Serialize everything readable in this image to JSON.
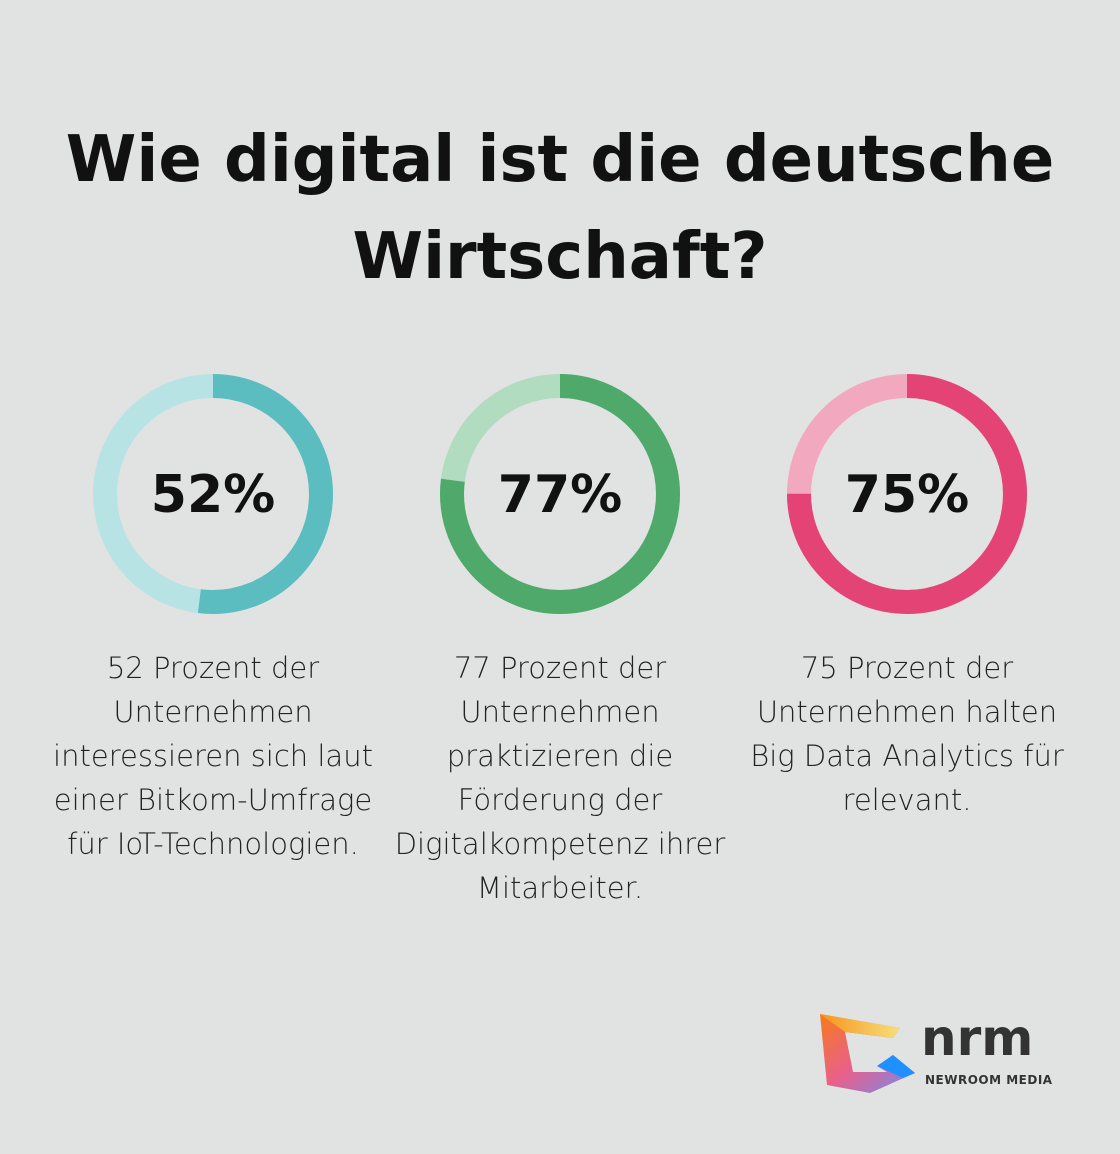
{
  "title": "Wie digital ist die deutsche Wirtschaft?",
  "chart_data": [
    {
      "type": "pie",
      "variant": "donut",
      "values": [
        52,
        48
      ],
      "label": "52%",
      "description": "52 Prozent der Unternehmen interessieren sich laut einer Bitkom-Umfrage für IoT-Technologien.",
      "colors": {
        "fill": "#5bbdc0",
        "track": "#b8e3e5"
      }
    },
    {
      "type": "pie",
      "variant": "donut",
      "values": [
        77,
        23
      ],
      "label": "77%",
      "description": "77 Prozent der Unternehmen praktizieren die Förderung der Digitalkompetenz ihrer Mitarbeiter.",
      "colors": {
        "fill": "#4ea96b",
        "track": "#b1dcc0"
      }
    },
    {
      "type": "pie",
      "variant": "donut",
      "values": [
        75,
        25
      ],
      "label": "75%",
      "description": "75 Prozent der Unternehmen halten Big Data Analytics für relevant.",
      "colors": {
        "fill": "#e44375",
        "track": "#f2a9bf"
      }
    }
  ],
  "logo": {
    "name": "nrm",
    "subtitle": "NEWROOM MEDIA"
  }
}
